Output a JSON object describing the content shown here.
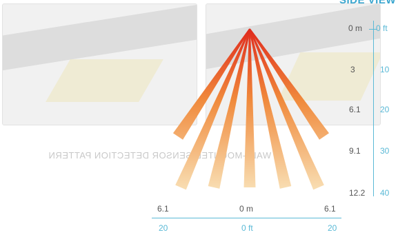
{
  "title": "SIDE VIEW",
  "mirrored_text": "WALL-MOUNTED SENSOR DETECTION PATTERN",
  "vertical_scale": {
    "m": [
      "0 m",
      "3",
      "6.1",
      "9.1",
      "12.2"
    ],
    "ft": [
      "0 ft",
      "10",
      "20",
      "30",
      "40"
    ]
  },
  "horizontal_scale": {
    "m": [
      "6.1",
      "0 m",
      "6.1"
    ],
    "ft": [
      "20",
      "0 ft",
      "20"
    ]
  },
  "colors": {
    "beam_hot": "#e02a1c",
    "beam_warm": "#f08a3c",
    "beam_fade": "#f8dcb0",
    "scale": "#5ab9d6",
    "metric_text": "#555555"
  },
  "beam_count": 7
}
